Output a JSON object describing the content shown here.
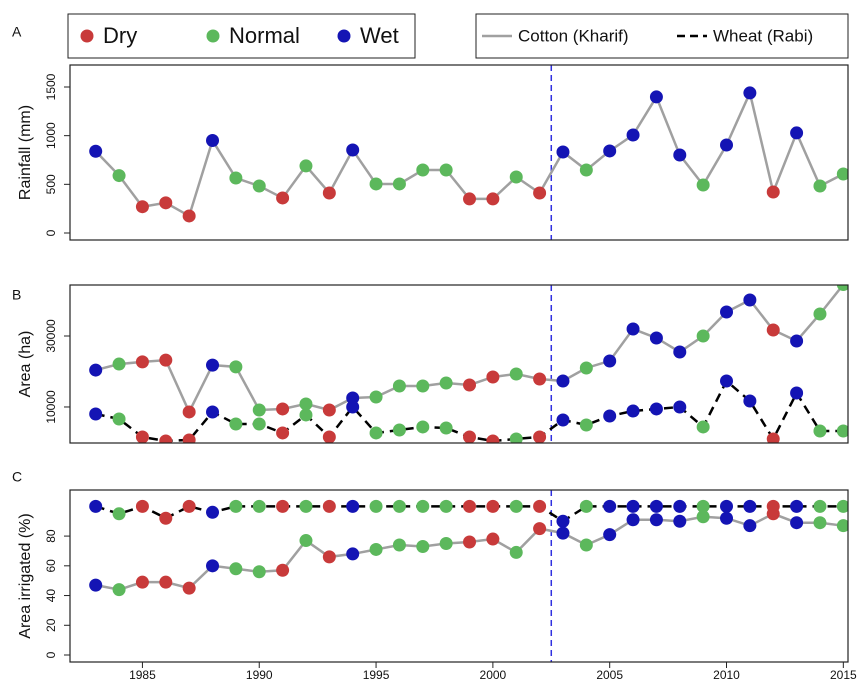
{
  "chart_data": [
    {
      "type": "line",
      "panel_label": "A",
      "ylabel": "Rainfall (mm)",
      "x": [
        1983,
        1984,
        1985,
        1986,
        1987,
        1988,
        1989,
        1990,
        1991,
        1992,
        1993,
        1994,
        1995,
        1996,
        1997,
        1998,
        1999,
        2000,
        2001,
        2002,
        2003,
        2004,
        2005,
        2006,
        2007,
        2008,
        2009,
        2010,
        2011,
        2012,
        2013,
        2014,
        2015
      ],
      "point_legend": [
        {
          "name": "Dry",
          "color": "#c83a3a"
        },
        {
          "name": "Normal",
          "color": "#5cb85c"
        },
        {
          "name": "Wet",
          "color": "#1414b4"
        }
      ],
      "point_class": [
        "Wet",
        "Normal",
        "Dry",
        "Dry",
        "Dry",
        "Wet",
        "Normal",
        "Normal",
        "Dry",
        "Normal",
        "Dry",
        "Wet",
        "Normal",
        "Normal",
        "Normal",
        "Normal",
        "Dry",
        "Dry",
        "Normal",
        "Dry",
        "Wet",
        "Normal",
        "Wet",
        "Wet",
        "Wet",
        "Wet",
        "Normal",
        "Wet",
        "Wet",
        "Dry",
        "Wet",
        "Normal",
        "Normal"
      ],
      "series": [
        {
          "color": "#a0a0a0",
          "dashed": false,
          "values": [
            840,
            590,
            270,
            310,
            175,
            950,
            565,
            483,
            360,
            689,
            411,
            853,
            504,
            504,
            647,
            647,
            350,
            350,
            575,
            411,
            832,
            647,
            843,
            1007,
            1398,
            801,
            493,
            904,
            1439,
            421,
            1028,
            483,
            606
          ]
        }
      ],
      "xlim": [
        1981.9,
        2015.2
      ],
      "ylim": [
        -72,
        1726
      ],
      "yticks": [
        0,
        500,
        1000,
        1500
      ],
      "vline": 2002.5,
      "vline_color": "#3030e0"
    },
    {
      "type": "line",
      "panel_label": "B",
      "ylabel": "Area (ha)",
      "x": [
        1983,
        1984,
        1985,
        1986,
        1987,
        1988,
        1989,
        1990,
        1991,
        1992,
        1993,
        1994,
        1995,
        1996,
        1997,
        1998,
        1999,
        2000,
        2001,
        2002,
        2003,
        2004,
        2005,
        2006,
        2007,
        2008,
        2009,
        2010,
        2011,
        2012,
        2013,
        2014,
        2015
      ],
      "series": [
        {
          "name": "Cotton (Kharif)",
          "color": "#a0a0a0",
          "dashed": false,
          "values": [
            20400,
            22100,
            22700,
            23200,
            8600,
            21800,
            21300,
            9150,
            9440,
            10850,
            9150,
            12540,
            12820,
            15920,
            15920,
            16760,
            16200,
            18450,
            19300,
            17890,
            17320,
            20990,
            22960,
            31970,
            29440,
            25490,
            30000,
            36760,
            40140,
            31690,
            28590,
            36200,
            44500
          ]
        },
        {
          "name": "Wheat (Rabi)",
          "color": "#000000",
          "dashed": true,
          "values": [
            8030,
            6620,
            1550,
            420,
            700,
            8590,
            5210,
            5210,
            2680,
            7750,
            1550,
            10000,
            2680,
            3520,
            4370,
            4080,
            1550,
            420,
            990,
            1550,
            6340,
            4930,
            7460,
            8870,
            9440,
            10000,
            4370,
            17320,
            11690,
            990,
            13940,
            3240,
            3240
          ]
        }
      ],
      "xlim": [
        1981.9,
        2015.2
      ],
      "ylim": [
        -150,
        44370
      ],
      "yticks": [
        10000,
        30000
      ],
      "vline": 2002.5,
      "vline_color": "#3030e0"
    },
    {
      "type": "line",
      "panel_label": "C",
      "ylabel": "Area irrigated (%)",
      "x": [
        1983,
        1984,
        1985,
        1986,
        1987,
        1988,
        1989,
        1990,
        1991,
        1992,
        1993,
        1994,
        1995,
        1996,
        1997,
        1998,
        1999,
        2000,
        2001,
        2002,
        2003,
        2004,
        2005,
        2006,
        2007,
        2008,
        2009,
        2010,
        2011,
        2012,
        2013,
        2014,
        2015
      ],
      "series": [
        {
          "name": "Cotton (Kharif)",
          "color": "#a0a0a0",
          "dashed": false,
          "values": [
            47,
            44,
            49,
            49,
            45,
            60,
            58,
            56,
            57,
            77,
            66,
            68,
            71,
            74,
            73,
            75,
            76,
            78,
            69,
            85,
            82,
            74,
            81,
            91,
            91,
            90,
            93,
            92,
            87,
            95,
            89,
            89,
            87
          ]
        },
        {
          "name": "Wheat (Rabi)",
          "color": "#000000",
          "dashed": true,
          "values": [
            100,
            95,
            100,
            92,
            100,
            96,
            100,
            100,
            100,
            100,
            100,
            100,
            100,
            100,
            100,
            100,
            100,
            100,
            100,
            100,
            90,
            100,
            100,
            100,
            100,
            100,
            100,
            100,
            100,
            100,
            100,
            100,
            100
          ]
        }
      ],
      "xlim": [
        1981.9,
        2015.2
      ],
      "ylim": [
        -4.7,
        111
      ],
      "yticks": [
        0,
        20,
        40,
        60,
        80
      ],
      "xticks": [
        1985,
        1990,
        1995,
        2000,
        2005,
        2010,
        2015
      ],
      "vline": 2002.5,
      "vline_color": "#3030e0"
    }
  ]
}
